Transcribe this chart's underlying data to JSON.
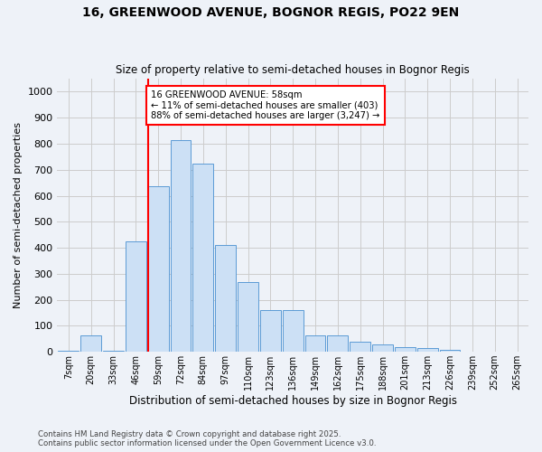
{
  "title1": "16, GREENWOOD AVENUE, BOGNOR REGIS, PO22 9EN",
  "title2": "Size of property relative to semi-detached houses in Bognor Regis",
  "xlabel": "Distribution of semi-detached houses by size in Bognor Regis",
  "ylabel": "Number of semi-detached properties",
  "bin_labels": [
    "7sqm",
    "20sqm",
    "33sqm",
    "46sqm",
    "59sqm",
    "72sqm",
    "84sqm",
    "97sqm",
    "110sqm",
    "123sqm",
    "136sqm",
    "149sqm",
    "162sqm",
    "175sqm",
    "188sqm",
    "201sqm",
    "213sqm",
    "226sqm",
    "239sqm",
    "252sqm",
    "265sqm"
  ],
  "bar_heights": [
    3,
    62,
    5,
    425,
    635,
    815,
    725,
    410,
    268,
    162,
    160,
    62,
    63,
    40,
    28,
    18,
    15,
    8,
    0,
    2,
    0
  ],
  "bar_color": "#cce0f5",
  "bar_edge_color": "#5b9bd5",
  "red_line_index": 4,
  "marker_label_line1": "16 GREENWOOD AVENUE: 58sqm",
  "marker_label_line2": "← 11% of semi-detached houses are smaller (403)",
  "marker_label_line3": "88% of semi-detached houses are larger (3,247) →",
  "ylim": [
    0,
    1050
  ],
  "yticks": [
    0,
    100,
    200,
    300,
    400,
    500,
    600,
    700,
    800,
    900,
    1000
  ],
  "grid_color": "#cccccc",
  "background_color": "#eef2f8",
  "footer1": "Contains HM Land Registry data © Crown copyright and database right 2025.",
  "footer2": "Contains public sector information licensed under the Open Government Licence v3.0."
}
